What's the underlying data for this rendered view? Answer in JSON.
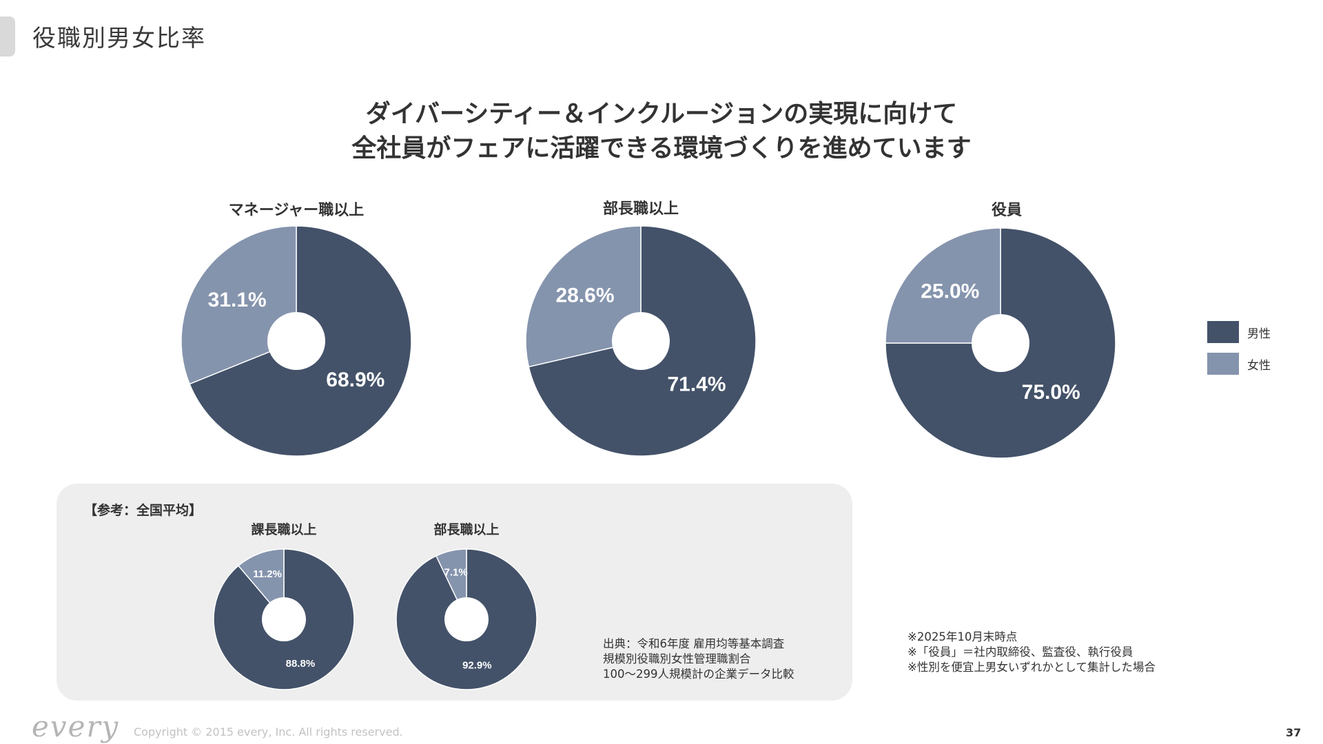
{
  "page": {
    "title": "役職別男女比率",
    "headline_line1": "ダイバーシティー＆インクルージョンの実現に向けて",
    "headline_line2": "全社員がフェアに活躍できる環境づくりを進めています",
    "page_number": "37"
  },
  "colors": {
    "male": "#435269",
    "female": "#8594ad",
    "ref_bg": "#eeeeee"
  },
  "legend": {
    "male": "男性",
    "female": "女性"
  },
  "chart_data": [
    {
      "type": "pie",
      "title": "マネージャー職以上",
      "categories": [
        "男性",
        "女性"
      ],
      "values": [
        68.9,
        31.1
      ],
      "labels": [
        "68.9%",
        "31.1%"
      ]
    },
    {
      "type": "pie",
      "title": "部長職以上",
      "categories": [
        "男性",
        "女性"
      ],
      "values": [
        71.4,
        28.6
      ],
      "labels": [
        "71.4%",
        "28.6%"
      ]
    },
    {
      "type": "pie",
      "title": "役員",
      "categories": [
        "男性",
        "女性"
      ],
      "values": [
        75.0,
        25.0
      ],
      "labels": [
        "75.0%",
        "25.0%"
      ]
    },
    {
      "type": "pie",
      "title": "課長職以上",
      "group": "【参考：全国平均】",
      "categories": [
        "男性",
        "女性"
      ],
      "values": [
        88.8,
        11.2
      ],
      "labels": [
        "88.8%",
        "11.2%"
      ]
    },
    {
      "type": "pie",
      "title": "部長職以上",
      "group": "【参考：全国平均】",
      "categories": [
        "男性",
        "女性"
      ],
      "values": [
        92.9,
        7.1
      ],
      "labels": [
        "92.9%",
        "7.1%"
      ]
    }
  ],
  "reference": {
    "title": "【参考：全国平均】",
    "source_lines": [
      "出典：令和6年度 雇用均等基本調査",
      "規模別役職別女性管理職割合",
      "100～299人規模計の企業データ比較"
    ]
  },
  "notes": [
    "※2025年10月末時点",
    "※「役員」＝社内取締役、監査役、執行役員",
    "※性別を便宜上男女いずれかとして集計した場合"
  ],
  "footer": {
    "logo": "every",
    "copyright": "Copyright © 2015 every, Inc. All rights reserved."
  }
}
